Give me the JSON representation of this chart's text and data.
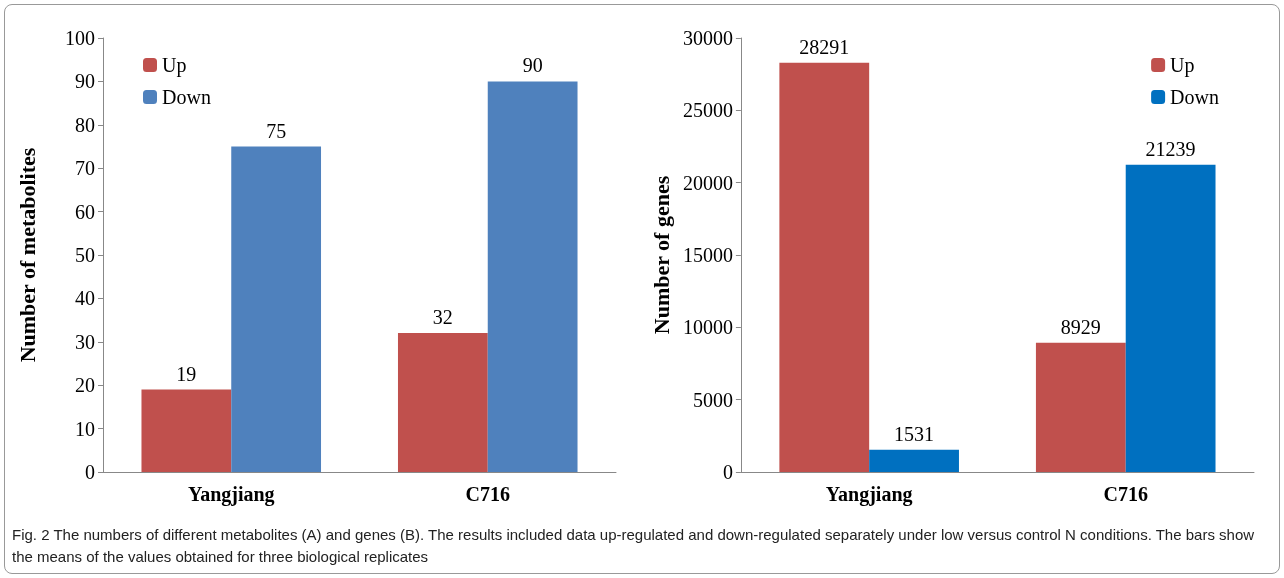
{
  "chart_data": [
    {
      "type": "bar",
      "categories": [
        "Yangjiang",
        "C716"
      ],
      "ylabel": "Number of metabolites",
      "ylim": [
        0,
        100
      ],
      "yticks": [
        0,
        10,
        20,
        30,
        40,
        50,
        60,
        70,
        80,
        90,
        100
      ],
      "legend": "top left",
      "data_labels": true,
      "series": [
        {
          "name": "Up",
          "color": "#c0504d",
          "values": [
            19,
            32
          ]
        },
        {
          "name": "Down",
          "color": "#4f81bd",
          "values": [
            75,
            90
          ]
        }
      ],
      "annotations": [
        "Fig. 2  The numbers of different metabolites (A) and genes (B). The results included data up-regulated and down-regulated separately under low versus control N conditions. The bars show the means of the values obtained for three biological replicates"
      ]
    },
    {
      "type": "bar",
      "categories": [
        "Yangjiang",
        "C716"
      ],
      "ylabel": "Number of genes",
      "ylim": [
        0,
        30000
      ],
      "yticks": [
        0,
        5000,
        10000,
        15000,
        20000,
        25000,
        30000
      ],
      "legend": "top right",
      "data_labels": true,
      "series": [
        {
          "name": "Up",
          "color": "#c0504d",
          "values": [
            28291,
            8929
          ]
        },
        {
          "name": "Down",
          "color": "#0070c0",
          "values": [
            1531,
            21239
          ]
        }
      ]
    }
  ]
}
